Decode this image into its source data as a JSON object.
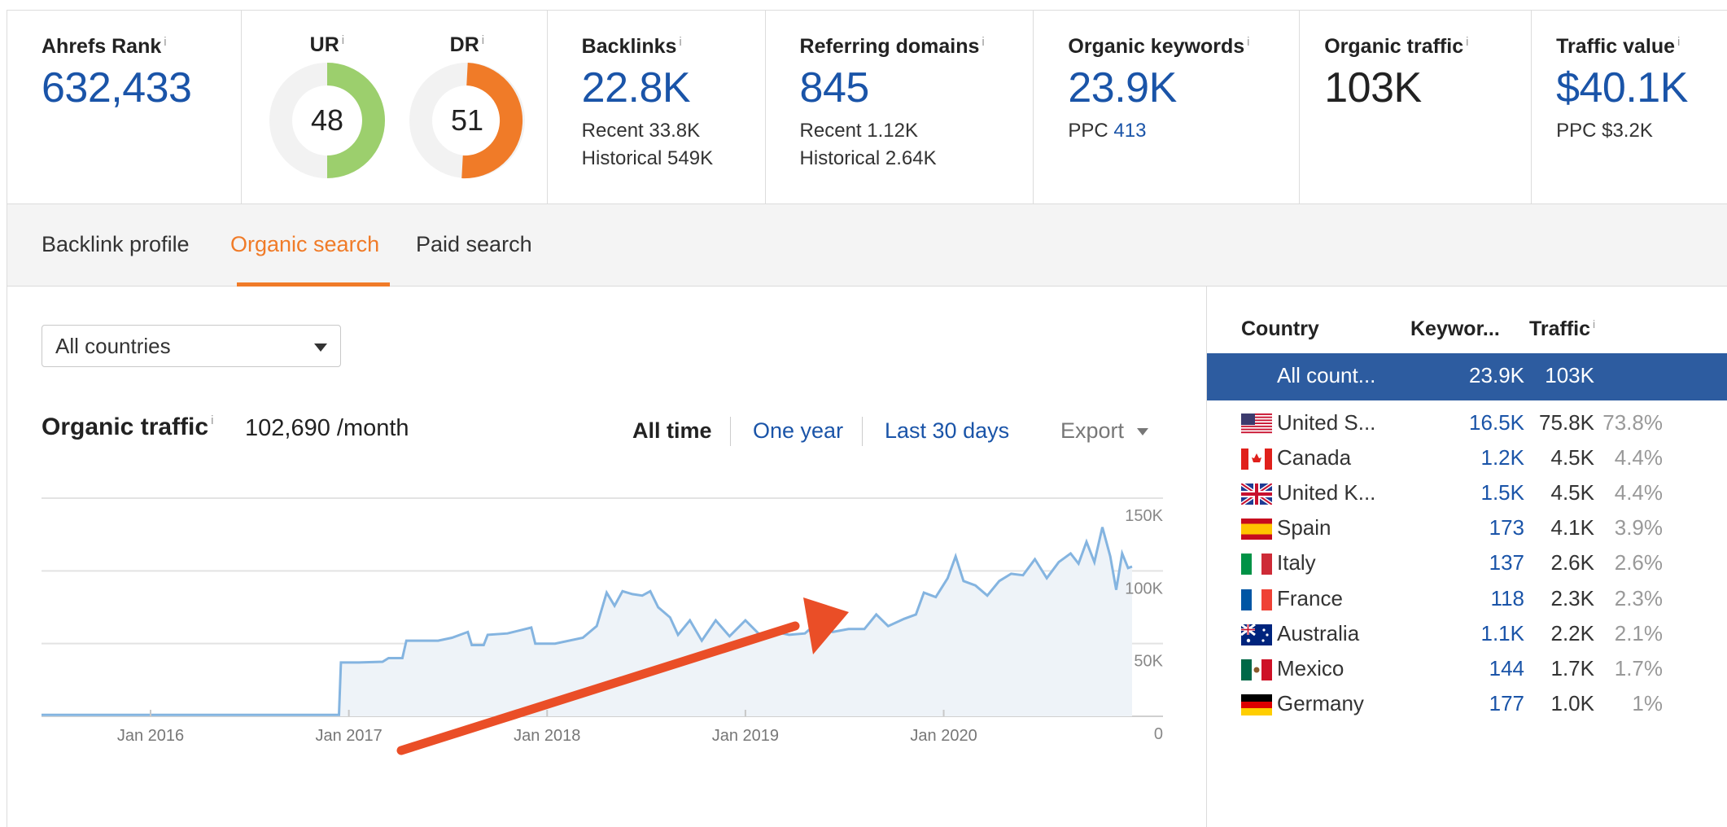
{
  "metrics": {
    "ahrefs_rank": {
      "label": "Ahrefs Rank",
      "value": "632,433"
    },
    "ur": {
      "label": "UR",
      "value": "48",
      "score": 48,
      "color": "#9ccf6d"
    },
    "dr": {
      "label": "DR",
      "value": "51",
      "score": 51,
      "color": "#f07b28"
    },
    "backlinks": {
      "label": "Backlinks",
      "value": "22.8K",
      "recent": "Recent 33.8K",
      "historical": "Historical 549K"
    },
    "referring_domains": {
      "label": "Referring domains",
      "value": "845",
      "recent": "Recent 1.12K",
      "historical": "Historical 2.64K"
    },
    "organic_keywords": {
      "label": "Organic keywords",
      "value": "23.9K",
      "ppc_label": "PPC",
      "ppc_value": "413"
    },
    "organic_traffic": {
      "label": "Organic traffic",
      "value": "103K"
    },
    "traffic_value": {
      "label": "Traffic value",
      "value": "$40.1K",
      "ppc": "PPC $3.2K"
    }
  },
  "info_glyph": "i",
  "tabs": [
    {
      "label": "Backlink profile",
      "active": false
    },
    {
      "label": "Organic search",
      "active": true
    },
    {
      "label": "Paid search",
      "active": false
    }
  ],
  "country_select": {
    "value": "All countries"
  },
  "organic_traffic_panel": {
    "title": "Organic traffic",
    "value": "102,690 /month",
    "ranges": [
      "All time",
      "One year",
      "Last 30 days"
    ],
    "active_range": "All time",
    "export_label": "Export"
  },
  "chart_data": {
    "type": "area",
    "title": "Organic traffic",
    "xlabel": "",
    "ylabel": "",
    "x_ticks": [
      "Jan 2016",
      "Jan 2017",
      "Jan 2018",
      "Jan 2019",
      "Jan 2020"
    ],
    "y_ticks": [
      "150K",
      "100K",
      "50K",
      "0"
    ],
    "ylim": [
      0,
      150000
    ],
    "xlim": [
      2015.45,
      2020.95
    ],
    "grid": true,
    "line_color": "#84b4e0",
    "fill_color": "#eef3f8",
    "series": [
      {
        "name": "Organic traffic",
        "points": [
          [
            2015.45,
            1000
          ],
          [
            2016.95,
            1000
          ],
          [
            2016.96,
            37000
          ],
          [
            2017.05,
            37000
          ],
          [
            2017.17,
            37500
          ],
          [
            2017.2,
            40000
          ],
          [
            2017.27,
            40000
          ],
          [
            2017.29,
            52000
          ],
          [
            2017.45,
            52000
          ],
          [
            2017.52,
            54000
          ],
          [
            2017.6,
            58000
          ],
          [
            2017.62,
            49000
          ],
          [
            2017.68,
            49000
          ],
          [
            2017.7,
            56000
          ],
          [
            2017.8,
            57000
          ],
          [
            2017.92,
            61000
          ],
          [
            2017.94,
            50000
          ],
          [
            2018.04,
            50000
          ],
          [
            2018.18,
            54000
          ],
          [
            2018.25,
            62000
          ],
          [
            2018.3,
            85000
          ],
          [
            2018.34,
            76000
          ],
          [
            2018.38,
            86000
          ],
          [
            2018.43,
            84000
          ],
          [
            2018.48,
            83000
          ],
          [
            2018.52,
            86000
          ],
          [
            2018.56,
            75000
          ],
          [
            2018.62,
            68000
          ],
          [
            2018.66,
            56000
          ],
          [
            2018.72,
            66000
          ],
          [
            2018.78,
            52000
          ],
          [
            2018.85,
            66000
          ],
          [
            2018.92,
            55000
          ],
          [
            2019.0,
            66000
          ],
          [
            2019.08,
            55000
          ],
          [
            2019.15,
            58000
          ],
          [
            2019.22,
            56000
          ],
          [
            2019.3,
            57000
          ],
          [
            2019.36,
            64000
          ],
          [
            2019.44,
            58000
          ],
          [
            2019.52,
            60000
          ],
          [
            2019.6,
            60000
          ],
          [
            2019.66,
            70000
          ],
          [
            2019.72,
            62000
          ],
          [
            2019.8,
            67000
          ],
          [
            2019.86,
            70000
          ],
          [
            2019.9,
            85000
          ],
          [
            2019.96,
            82000
          ],
          [
            2020.02,
            95000
          ],
          [
            2020.06,
            110000
          ],
          [
            2020.1,
            93000
          ],
          [
            2020.16,
            90000
          ],
          [
            2020.22,
            83000
          ],
          [
            2020.28,
            93000
          ],
          [
            2020.34,
            98000
          ],
          [
            2020.4,
            97000
          ],
          [
            2020.46,
            108000
          ],
          [
            2020.52,
            95000
          ],
          [
            2020.58,
            106000
          ],
          [
            2020.64,
            112000
          ],
          [
            2020.68,
            105000
          ],
          [
            2020.72,
            120000
          ],
          [
            2020.76,
            106000
          ],
          [
            2020.8,
            130000
          ],
          [
            2020.84,
            110000
          ],
          [
            2020.87,
            87000
          ],
          [
            2020.9,
            112000
          ],
          [
            2020.93,
            102000
          ],
          [
            2020.95,
            103000
          ]
        ]
      }
    ],
    "annotation": {
      "type": "arrow",
      "direction": "upward trend",
      "color": "#ea4e27"
    }
  },
  "country_table": {
    "columns": [
      "Country",
      "Keywor...",
      "Traffic"
    ],
    "rows": [
      {
        "country": "All count...",
        "keywords": "23.9K",
        "traffic": "103K",
        "share": "",
        "flag": "none",
        "selected": true
      },
      {
        "country": "United S...",
        "keywords": "16.5K",
        "traffic": "75.8K",
        "share": "73.8%",
        "flag": "us-flag-icon",
        "selected": false
      },
      {
        "country": "Canada",
        "keywords": "1.2K",
        "traffic": "4.5K",
        "share": "4.4%",
        "flag": "ca-flag-icon",
        "selected": false
      },
      {
        "country": "United K...",
        "keywords": "1.5K",
        "traffic": "4.5K",
        "share": "4.4%",
        "flag": "uk-flag-icon",
        "selected": false
      },
      {
        "country": "Spain",
        "keywords": "173",
        "traffic": "4.1K",
        "share": "3.9%",
        "flag": "es-flag-icon",
        "selected": false
      },
      {
        "country": "Italy",
        "keywords": "137",
        "traffic": "2.6K",
        "share": "2.6%",
        "flag": "it-flag-icon",
        "selected": false
      },
      {
        "country": "France",
        "keywords": "118",
        "traffic": "2.3K",
        "share": "2.3%",
        "flag": "fr-flag-icon",
        "selected": false
      },
      {
        "country": "Australia",
        "keywords": "1.1K",
        "traffic": "2.2K",
        "share": "2.1%",
        "flag": "au-flag-icon",
        "selected": false
      },
      {
        "country": "Mexico",
        "keywords": "144",
        "traffic": "1.7K",
        "share": "1.7%",
        "flag": "mx-flag-icon",
        "selected": false
      },
      {
        "country": "Germany",
        "keywords": "177",
        "traffic": "1.0K",
        "share": "1%",
        "flag": "de-flag-icon",
        "selected": false
      }
    ]
  }
}
